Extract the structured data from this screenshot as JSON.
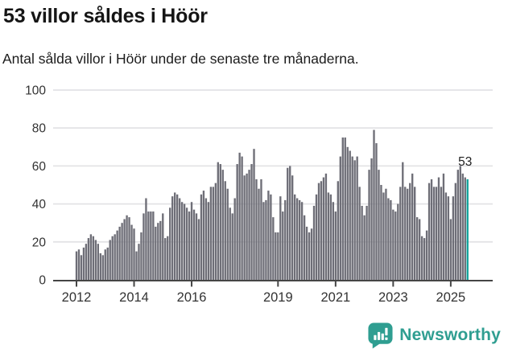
{
  "header": {
    "title": "53 villor såldes i Höör",
    "subtitle": "Antal sålda villor i Höör under de senaste tre månaderna."
  },
  "chart_data": {
    "type": "bar",
    "title": "53 villor såldes i Höör",
    "subtitle": "Antal sålda villor i Höör under de senaste tre månaderna.",
    "frequency": "monthly",
    "x_start": "2012-01",
    "x_end": "2025-08",
    "ylim": [
      0,
      100
    ],
    "y_ticks": [
      0,
      20,
      40,
      60,
      80,
      100
    ],
    "x_tick_years": [
      2012,
      2014,
      2016,
      2019,
      2021,
      2023,
      2025
    ],
    "grid": true,
    "last_value_label": "53",
    "values": [
      15,
      16,
      13,
      17,
      19,
      22,
      24,
      23,
      21,
      19,
      14,
      13,
      16,
      17,
      21,
      23,
      24,
      26,
      28,
      30,
      32,
      34,
      33,
      29,
      27,
      15,
      19,
      25,
      35,
      43,
      36,
      36,
      36,
      28,
      30,
      31,
      35,
      22,
      23,
      38,
      44,
      46,
      45,
      43,
      41,
      40,
      38,
      36,
      41,
      37,
      35,
      32,
      45,
      47,
      43,
      41,
      49,
      49,
      51,
      62,
      61,
      58,
      52,
      48,
      38,
      35,
      43,
      61,
      67,
      65,
      55,
      56,
      58,
      61,
      69,
      53,
      48,
      53,
      41,
      42,
      47,
      45,
      33,
      25,
      25,
      44,
      36,
      42,
      59,
      60,
      55,
      45,
      43,
      42,
      41,
      34,
      28,
      25,
      27,
      39,
      45,
      51,
      52,
      54,
      56,
      46,
      45,
      41,
      36,
      52,
      65,
      75,
      75,
      70,
      68,
      65,
      63,
      65,
      49,
      39,
      34,
      39,
      58,
      64,
      79,
      72,
      58,
      50,
      46,
      48,
      43,
      42,
      37,
      36,
      40,
      49,
      62,
      49,
      48,
      51,
      56,
      49,
      33,
      32,
      23,
      22,
      26,
      51,
      53,
      49,
      49,
      54,
      49,
      56,
      46,
      44,
      32,
      44,
      51,
      58,
      60,
      56,
      54,
      53
    ],
    "colors": {
      "bar": "#6e6e77",
      "highlight": "#0fa29a",
      "grid": "#e3e3e6",
      "axis": "#454545",
      "tick_label": "#333333",
      "annotation": "#1f1f1f"
    }
  },
  "footer": {
    "logo_text": "Newsworthy",
    "logo_color": "#2f9e91"
  }
}
